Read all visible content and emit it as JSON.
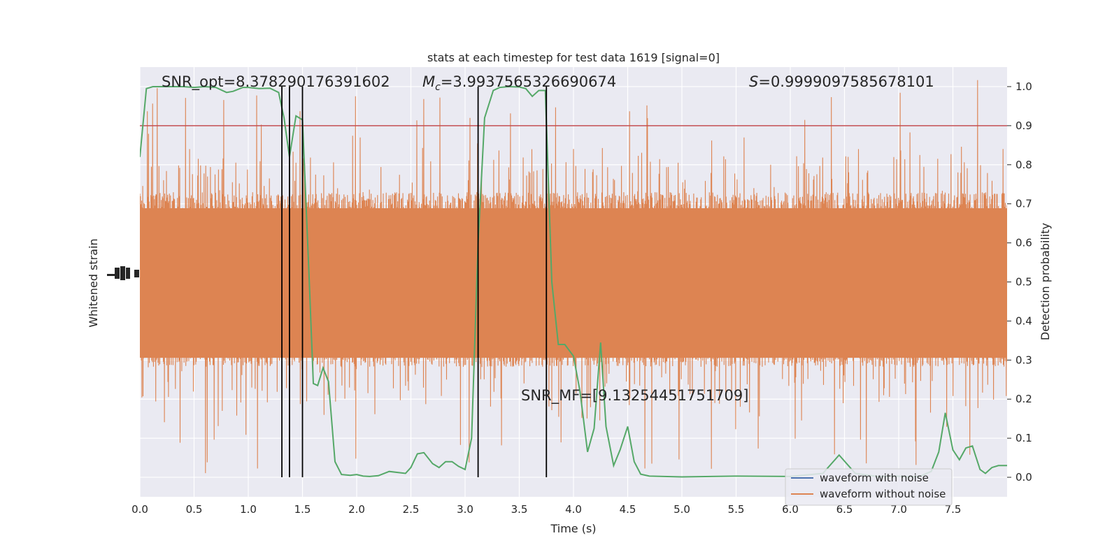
{
  "chart_data": {
    "type": "line",
    "title": "stats at each timestep for test data 1619 [signal=0]",
    "xlabel": "Time (s)",
    "ylabel_left": "Whitened strain",
    "ylabel_right": "Detection probability",
    "xlim": [
      0,
      8
    ],
    "ylim_right": [
      -0.05,
      1.05
    ],
    "x_ticks": [
      "0.0",
      "0.5",
      "1.0",
      "1.5",
      "2.0",
      "2.5",
      "3.0",
      "3.5",
      "4.0",
      "4.5",
      "5.0",
      "5.5",
      "6.0",
      "6.5",
      "7.0",
      "7.5"
    ],
    "y_ticks_right": [
      "0.0",
      "0.1",
      "0.2",
      "0.3",
      "0.4",
      "0.5",
      "0.6",
      "0.7",
      "0.8",
      "0.9",
      "1.0"
    ],
    "grid": true,
    "threshold": 0.9,
    "vertical_lines": [
      1.31,
      1.38,
      1.5,
      3.12,
      3.75
    ],
    "annotations": {
      "snr_opt": "SNR_opt=8.378290176391602",
      "mc_symbol": "M",
      "mc_sub": "c",
      "mc_value": "=3.9937565326690674",
      "s_symbol": "S",
      "s_value": "=0.9999097585678101",
      "snr_mf": "SNR_MF=[9.13254451751709]"
    },
    "legend": {
      "placement": "bottom-right",
      "entries": [
        {
          "label": "waveform with noise",
          "color": "#4c72b0"
        },
        {
          "label": "waveform without noise",
          "color": "#dd8452"
        }
      ]
    },
    "series": [
      {
        "name": "Detection probability",
        "color": "#55a868",
        "x": [
          0.0,
          0.06,
          0.12,
          0.2,
          0.3,
          0.4,
          0.5,
          0.6,
          0.7,
          0.8,
          0.86,
          0.95,
          1.0,
          1.1,
          1.2,
          1.28,
          1.33,
          1.38,
          1.44,
          1.5,
          1.56,
          1.6,
          1.64,
          1.69,
          1.74,
          1.8,
          1.86,
          1.94,
          2.0,
          2.06,
          2.12,
          2.2,
          2.3,
          2.45,
          2.5,
          2.56,
          2.62,
          2.7,
          2.76,
          2.82,
          2.88,
          2.94,
          3.0,
          3.06,
          3.12,
          3.18,
          3.26,
          3.32,
          3.4,
          3.5,
          3.56,
          3.62,
          3.68,
          3.74,
          3.8,
          3.86,
          3.92,
          4.0,
          4.06,
          4.13,
          4.19,
          4.25,
          4.3,
          4.37,
          4.43,
          4.5,
          4.56,
          4.62,
          4.7,
          5.0,
          5.5,
          6.0,
          6.3,
          6.45,
          6.6,
          6.8,
          6.98,
          7.1,
          7.2,
          7.3,
          7.37,
          7.43,
          7.5,
          7.56,
          7.62,
          7.68,
          7.75,
          7.8,
          7.86,
          7.92,
          8.0
        ],
        "y": [
          0.82,
          0.995,
          1.0,
          1.0,
          1.0,
          1.0,
          0.998,
          1.0,
          0.998,
          0.985,
          0.988,
          0.998,
          0.998,
          0.995,
          0.996,
          0.985,
          0.92,
          0.82,
          0.925,
          0.915,
          0.52,
          0.24,
          0.235,
          0.28,
          0.245,
          0.04,
          0.007,
          0.005,
          0.007,
          0.003,
          0.002,
          0.004,
          0.015,
          0.01,
          0.025,
          0.06,
          0.063,
          0.035,
          0.025,
          0.04,
          0.04,
          0.028,
          0.02,
          0.1,
          0.6,
          0.92,
          0.99,
          0.998,
          1.0,
          0.999,
          0.995,
          0.975,
          0.99,
          0.99,
          0.5,
          0.34,
          0.34,
          0.31,
          0.22,
          0.065,
          0.125,
          0.345,
          0.13,
          0.03,
          0.07,
          0.13,
          0.04,
          0.008,
          0.003,
          0.001,
          0.003,
          0.002,
          0.01,
          0.057,
          0.01,
          0.002,
          0.003,
          0.001,
          0.003,
          0.015,
          0.065,
          0.165,
          0.07,
          0.045,
          0.075,
          0.08,
          0.02,
          0.01,
          0.025,
          0.03,
          0.03
        ]
      }
    ]
  }
}
